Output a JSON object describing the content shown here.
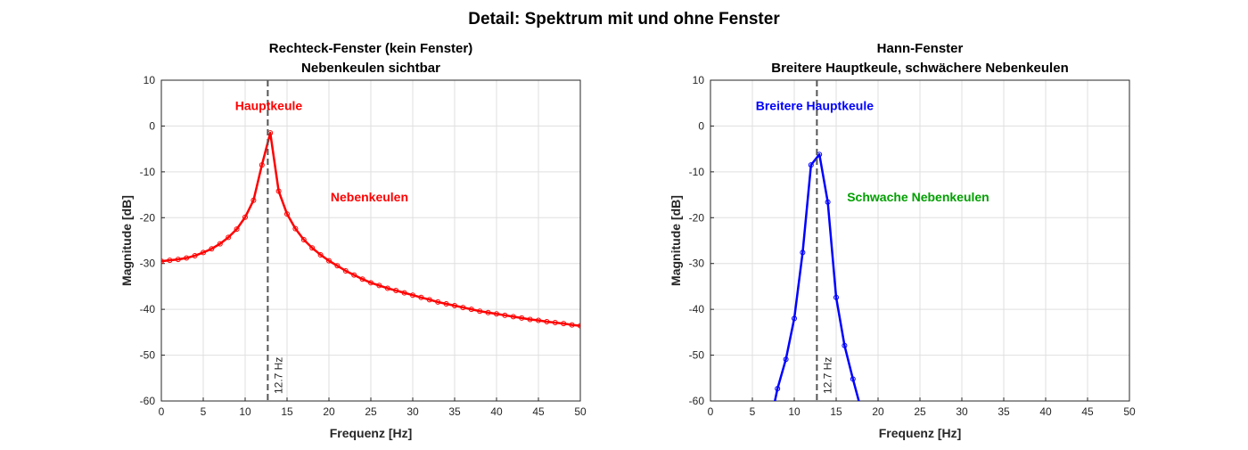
{
  "title": "Detail: Spektrum mit und ohne Fenster",
  "chart_data": [
    {
      "type": "line",
      "title_line1": "Rechteck-Fenster (kein Fenster)",
      "title_line2": "Nebenkeulen sichtbar",
      "xlabel": "Frequenz [Hz]",
      "ylabel": "Magnitude [dB]",
      "xlim": [
        0,
        50
      ],
      "ylim": [
        -60,
        10
      ],
      "xticks": [
        0,
        5,
        10,
        15,
        20,
        25,
        30,
        35,
        40,
        45,
        50
      ],
      "yticks": [
        -60,
        -50,
        -40,
        -30,
        -20,
        -10,
        0,
        10
      ],
      "grid": true,
      "color": "#ff0000",
      "marker": "circle",
      "x": [
        0,
        1,
        2,
        3,
        4,
        5,
        6,
        7,
        8,
        9,
        10,
        11,
        12,
        13,
        14,
        15,
        16,
        17,
        18,
        19,
        20,
        21,
        22,
        23,
        24,
        25,
        26,
        27,
        28,
        29,
        30,
        31,
        32,
        33,
        34,
        35,
        36,
        37,
        38,
        39,
        40,
        41,
        42,
        43,
        44,
        45,
        46,
        47,
        48,
        49,
        50
      ],
      "y": [
        -29.5,
        -29.3,
        -29.1,
        -28.8,
        -28.3,
        -27.6,
        -26.8,
        -25.7,
        -24.3,
        -22.5,
        -19.9,
        -16.2,
        -8.5,
        -1.5,
        -14.2,
        -19.2,
        -22.4,
        -24.8,
        -26.6,
        -28.1,
        -29.4,
        -30.5,
        -31.6,
        -32.5,
        -33.4,
        -34.2,
        -34.8,
        -35.4,
        -35.9,
        -36.4,
        -36.9,
        -37.4,
        -37.9,
        -38.4,
        -38.8,
        -39.2,
        -39.6,
        -40.0,
        -40.4,
        -40.7,
        -41.0,
        -41.3,
        -41.6,
        -41.9,
        -42.2,
        -42.4,
        -42.7,
        -42.9,
        -43.1,
        -43.4,
        -43.6
      ],
      "vline": {
        "x": 12.7,
        "label": "12.7 Hz",
        "color": "#555555"
      },
      "annotations": [
        {
          "text": "Hauptkeule",
          "x": 8.8,
          "y": 4.5,
          "color": "#ff0000"
        },
        {
          "text": "Nebenkeulen",
          "x": 20.2,
          "y": -15.5,
          "color": "#ff0000"
        }
      ]
    },
    {
      "type": "line",
      "title_line1": "Hann-Fenster",
      "title_line2": "Breitere Hauptkeule, schwächere Nebenkeulen",
      "xlabel": "Frequenz [Hz]",
      "ylabel": "Magnitude [dB]",
      "xlim": [
        0,
        50
      ],
      "ylim": [
        -60,
        10
      ],
      "xticks": [
        0,
        5,
        10,
        15,
        20,
        25,
        30,
        35,
        40,
        45,
        50
      ],
      "yticks": [
        -60,
        -50,
        -40,
        -30,
        -20,
        -10,
        0,
        10
      ],
      "grid": true,
      "color": "#0000ff",
      "marker": "circle",
      "x": [
        7,
        8,
        9,
        10,
        11,
        12,
        13,
        14,
        15,
        16,
        17,
        18
      ],
      "y": [
        -66,
        -57.3,
        -50.9,
        -42.0,
        -27.6,
        -8.5,
        -6.2,
        -16.6,
        -37.4,
        -47.9,
        -55.2,
        -62
      ],
      "vline": {
        "x": 12.7,
        "label": "12.7 Hz",
        "color": "#555555"
      },
      "annotations": [
        {
          "text": "Breitere Hauptkeule",
          "x": 5.4,
          "y": 4.5,
          "color": "#0000ff"
        },
        {
          "text": "Schwache Nebenkeulen",
          "x": 16.3,
          "y": -15.5,
          "color": "#00a000"
        }
      ]
    }
  ]
}
